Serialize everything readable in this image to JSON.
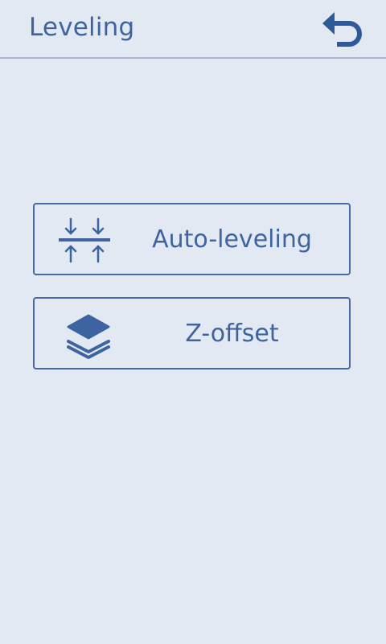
{
  "header": {
    "title": "Leveling",
    "back_icon": "back-arrow-icon"
  },
  "menu": {
    "items": [
      {
        "label": "Auto-leveling",
        "icon": "auto-leveling-icon"
      },
      {
        "label": "Z-offset",
        "icon": "layers-icon"
      }
    ]
  },
  "colors": {
    "background": "#e2e9f3",
    "accent": "#3d64a0",
    "divider": "#aab9d0"
  }
}
